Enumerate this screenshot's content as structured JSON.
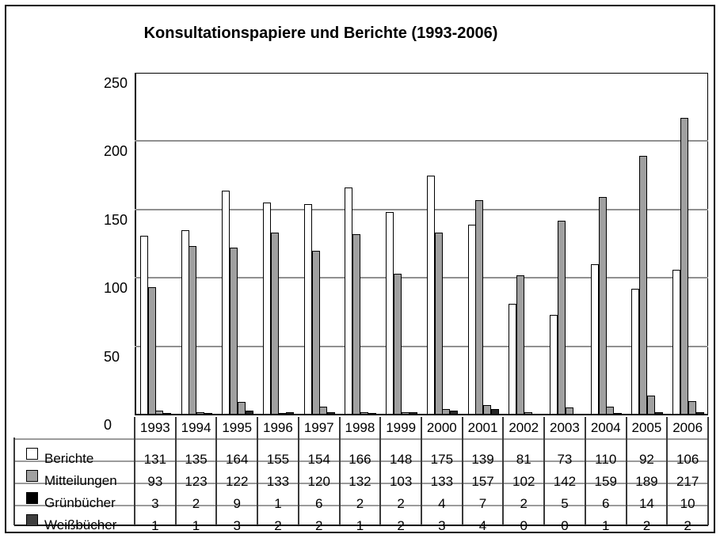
{
  "title": "Konsultationspapiere und Berichte (1993-2006)",
  "chart_data": {
    "type": "bar",
    "title": "Konsultationspapiere und Berichte (1993-2006)",
    "categories": [
      "1993",
      "1994",
      "1995",
      "1996",
      "1997",
      "1998",
      "1999",
      "2000",
      "2001",
      "2002",
      "2003",
      "2004",
      "2005",
      "2006"
    ],
    "series": [
      {
        "name": "Berichte",
        "bar_color": "#ffffff",
        "legend_color": "#ffffff",
        "values": [
          131,
          135,
          164,
          155,
          154,
          166,
          148,
          175,
          139,
          81,
          73,
          110,
          92,
          106
        ]
      },
      {
        "name": "Mitteilungen",
        "bar_color": "#a0a0a0",
        "legend_color": "#a0a0a0",
        "values": [
          93,
          123,
          122,
          133,
          120,
          132,
          103,
          133,
          157,
          102,
          142,
          159,
          189,
          217
        ]
      },
      {
        "name": "Grünbücher",
        "bar_color": "#a0a0a0",
        "legend_color": "#000000",
        "values": [
          3,
          2,
          9,
          1,
          6,
          2,
          2,
          4,
          7,
          2,
          5,
          6,
          14,
          10
        ]
      },
      {
        "name": "Weißbücher",
        "bar_color": "#262626",
        "legend_color": "#3f3f3f",
        "values": [
          1,
          1,
          3,
          2,
          2,
          1,
          2,
          3,
          4,
          0,
          0,
          1,
          2,
          2
        ]
      }
    ],
    "xlabel": "",
    "ylabel": "",
    "ylim": [
      0,
      250
    ],
    "y_ticks": [
      0,
      50,
      100,
      150,
      200,
      250
    ],
    "grid": true,
    "legend_position": "bottom-left-table",
    "data_table_shown": true
  },
  "colors": {
    "axis": "#000000",
    "gridline": "#909090",
    "table_line": "#9b9b9b",
    "column_line": "#3a3a3a",
    "background": "#ffffff"
  }
}
